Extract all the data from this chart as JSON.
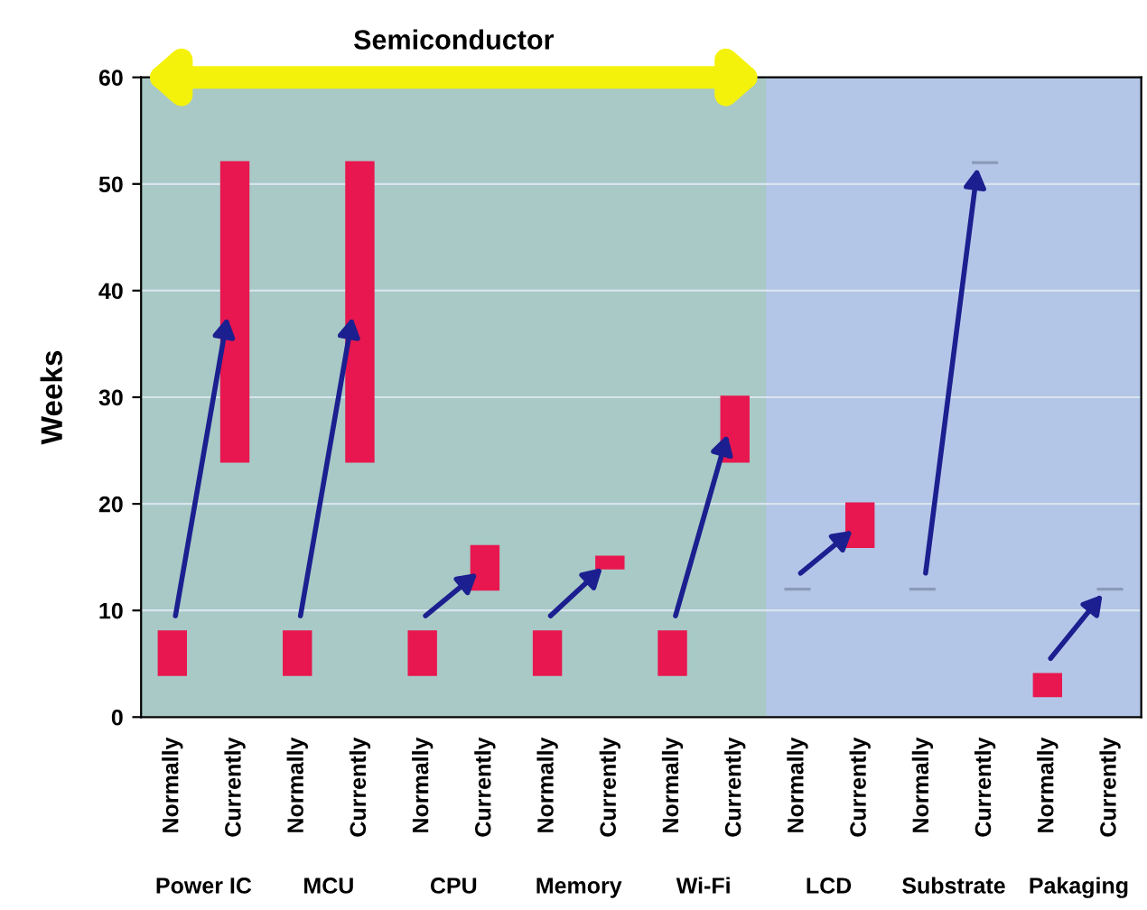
{
  "chart_data": {
    "type": "bar",
    "ylabel": "Weeks",
    "categories": [
      "Normally",
      "Currently",
      "Normally",
      "Currently",
      "Normally",
      "Currently",
      "Normally",
      "Currently",
      "Normally",
      "Currently",
      "Normally",
      "Currently",
      "Normally",
      "Currently",
      "Normally",
      "Currently"
    ],
    "base": [
      4,
      24,
      4,
      24,
      4,
      12,
      4,
      14,
      4,
      24,
      12,
      16,
      12,
      52,
      2,
      12
    ],
    "values": [
      4,
      28,
      4,
      28,
      4,
      4,
      4,
      1,
      4,
      6,
      0,
      4,
      0,
      0,
      2,
      0
    ],
    "colors": [
      "#e8174f",
      "#e8174f",
      "#e8174f",
      "#e8174f",
      "#e8174f",
      "#e8174f",
      "#e8174f",
      "#e8174f",
      "#e8174f",
      "#e8174f",
      "#8a9bb8",
      "#e8174f",
      "#8a9bb8",
      "#8a9bb8",
      "#e8174f",
      "#8a9bb8"
    ],
    "ylim": [
      0,
      60
    ],
    "yticks": [
      0,
      10,
      20,
      30,
      40,
      50,
      60
    ],
    "grid": "y",
    "annotations": [
      "Semiconductor",
      "Power IC",
      "MCU",
      "CPU",
      "Memory",
      "Wi-Fi",
      "LCD",
      "Substrate",
      "Pakaging"
    ]
  }
}
